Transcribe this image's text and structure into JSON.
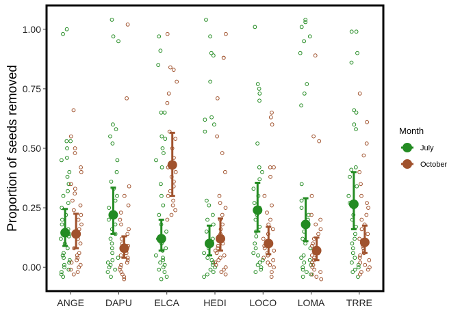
{
  "chart_data": {
    "type": "scatter",
    "title": "",
    "xlabel": "",
    "ylabel": "Proportion of seeds removed",
    "ylim": [
      -0.1,
      1.1
    ],
    "yticks": [
      "0.00",
      "0.25",
      "0.50",
      "0.75",
      "1.00"
    ],
    "categories": [
      "ANGE",
      "DAPU",
      "ELCA",
      "HEDI",
      "LOCO",
      "LOMA",
      "TRRE"
    ],
    "grid": false,
    "legend": {
      "title": "Month",
      "position": "right"
    },
    "series": [
      {
        "name": "July",
        "color": "#238b22",
        "means": [
          0.145,
          0.22,
          0.12,
          0.1,
          0.24,
          0.18,
          0.265
        ],
        "ci_low": [
          0.09,
          0.14,
          0.07,
          0.05,
          0.15,
          0.11,
          0.16
        ],
        "ci_high": [
          0.245,
          0.335,
          0.2,
          0.175,
          0.355,
          0.29,
          0.4
        ],
        "points": [
          [
            1.0,
            0.98,
            0.53,
            0.53,
            0.5,
            0.46,
            0.45,
            0.4,
            0.38,
            0.35,
            0.32,
            0.3,
            0.27,
            0.25,
            0.22,
            0.2,
            0.18,
            0.16,
            0.14,
            0.13,
            0.12,
            0.1,
            0.08,
            0.06,
            0.05,
            0.04,
            0.03,
            0.02,
            0.01,
            0.0,
            -0.01,
            -0.02,
            -0.03,
            -0.04
          ],
          [
            1.04,
            0.97,
            0.95,
            0.6,
            0.58,
            0.55,
            0.52,
            0.45,
            0.4,
            0.36,
            0.33,
            0.3,
            0.28,
            0.25,
            0.22,
            0.2,
            0.18,
            0.16,
            0.14,
            0.12,
            0.1,
            0.08,
            0.06,
            0.04,
            0.03,
            0.02,
            0.01,
            0.0,
            -0.01,
            -0.02,
            -0.04
          ],
          [
            0.97,
            0.91,
            0.85,
            0.65,
            0.65,
            0.55,
            0.54,
            0.5,
            0.48,
            0.45,
            0.42,
            0.35,
            0.3,
            0.26,
            0.22,
            0.18,
            0.15,
            0.12,
            0.1,
            0.08,
            0.07,
            0.05,
            0.04,
            0.03,
            0.02,
            0.01,
            0.0,
            -0.01,
            -0.02,
            -0.04,
            -0.05
          ],
          [
            1.04,
            0.97,
            0.9,
            0.89,
            0.78,
            0.63,
            0.62,
            0.6,
            0.57,
            0.28,
            0.26,
            0.22,
            0.2,
            0.18,
            0.15,
            0.12,
            0.1,
            0.08,
            0.06,
            0.04,
            0.03,
            0.02,
            0.01,
            0.0,
            -0.01,
            -0.02,
            -0.03,
            -0.04
          ],
          [
            1.01,
            0.77,
            0.75,
            0.73,
            0.7,
            0.52,
            0.42,
            0.4,
            0.37,
            0.33,
            0.3,
            0.27,
            0.25,
            0.22,
            0.2,
            0.17,
            0.15,
            0.13,
            0.1,
            0.08,
            0.06,
            0.05,
            0.03,
            0.02,
            0.01,
            0.0,
            -0.01,
            -0.02
          ],
          [
            1.04,
            1.03,
            1.01,
            0.97,
            0.95,
            0.9,
            0.77,
            0.73,
            0.68,
            0.35,
            0.28,
            0.25,
            0.22,
            0.2,
            0.18,
            0.15,
            0.12,
            0.1,
            0.08,
            0.05,
            0.04,
            0.03,
            0.02,
            0.01,
            0.0,
            -0.01,
            -0.02,
            -0.03,
            -0.04
          ],
          [
            0.99,
            0.99,
            0.9,
            0.86,
            0.66,
            0.65,
            0.6,
            0.58,
            0.42,
            0.41,
            0.38,
            0.34,
            0.3,
            0.27,
            0.25,
            0.22,
            0.2,
            0.17,
            0.14,
            0.12,
            0.1,
            0.08,
            0.06,
            0.04,
            0.02,
            0.01,
            0.0,
            -0.01,
            -0.02,
            -0.04
          ]
        ]
      },
      {
        "name": "October",
        "color": "#a0522d",
        "means": [
          0.14,
          0.08,
          0.43,
          0.12,
          0.1,
          0.07,
          0.105
        ],
        "ci_low": [
          0.08,
          0.04,
          0.3,
          0.07,
          0.055,
          0.03,
          0.06
        ],
        "ci_high": [
          0.225,
          0.13,
          0.565,
          0.205,
          0.17,
          0.125,
          0.175
        ],
        "points": [
          [
            0.66,
            0.55,
            0.5,
            0.48,
            0.42,
            0.4,
            0.35,
            0.33,
            0.31,
            0.28,
            0.26,
            0.24,
            0.22,
            0.2,
            0.18,
            0.16,
            0.14,
            0.12,
            0.1,
            0.08,
            0.06,
            0.05,
            0.04,
            0.03,
            0.02,
            0.01,
            0.0,
            -0.01,
            -0.02,
            -0.03
          ],
          [
            1.02,
            0.71,
            0.34,
            0.3,
            0.26,
            0.23,
            0.2,
            0.18,
            0.16,
            0.14,
            0.12,
            0.1,
            0.09,
            0.08,
            0.07,
            0.06,
            0.05,
            0.04,
            0.03,
            0.02,
            0.01,
            0.0,
            -0.01,
            -0.02,
            -0.03,
            -0.04,
            -0.05
          ],
          [
            0.98,
            0.84,
            0.83,
            0.78,
            0.73,
            0.69,
            0.57,
            0.54,
            0.5,
            0.46,
            0.44,
            0.42,
            0.4,
            0.38,
            0.36,
            0.34,
            0.32,
            0.3,
            0.28,
            0.26,
            0.24,
            0.22,
            0.2
          ],
          [
            0.98,
            0.88,
            0.88,
            0.71,
            0.55,
            0.48,
            0.4,
            0.3,
            0.27,
            0.25,
            0.22,
            0.2,
            0.18,
            0.16,
            0.14,
            0.12,
            0.1,
            0.09,
            0.08,
            0.07,
            0.06,
            0.05,
            0.04,
            0.03,
            0.02,
            0.01,
            0.0,
            -0.01,
            -0.02,
            -0.03
          ],
          [
            0.65,
            0.63,
            0.6,
            0.42,
            0.42,
            0.38,
            0.3,
            0.26,
            0.23,
            0.2,
            0.18,
            0.16,
            0.14,
            0.12,
            0.1,
            0.09,
            0.08,
            0.07,
            0.06,
            0.05,
            0.04,
            0.03,
            0.02,
            0.01,
            0.0,
            -0.02,
            -0.04
          ],
          [
            0.89,
            0.55,
            0.53,
            0.3,
            0.22,
            0.2,
            0.18,
            0.16,
            0.14,
            0.12,
            0.1,
            0.09,
            0.08,
            0.07,
            0.06,
            0.05,
            0.04,
            0.03,
            0.02,
            0.01,
            0.0,
            -0.01,
            -0.02,
            -0.03,
            -0.04,
            -0.05
          ],
          [
            0.73,
            0.61,
            0.52,
            0.47,
            0.4,
            0.35,
            0.3,
            0.27,
            0.25,
            0.22,
            0.2,
            0.18,
            0.16,
            0.14,
            0.12,
            0.1,
            0.09,
            0.08,
            0.07,
            0.06,
            0.05,
            0.04,
            0.03,
            0.02,
            0.01,
            0.0,
            -0.01,
            -0.02,
            -0.03
          ]
        ]
      }
    ]
  }
}
